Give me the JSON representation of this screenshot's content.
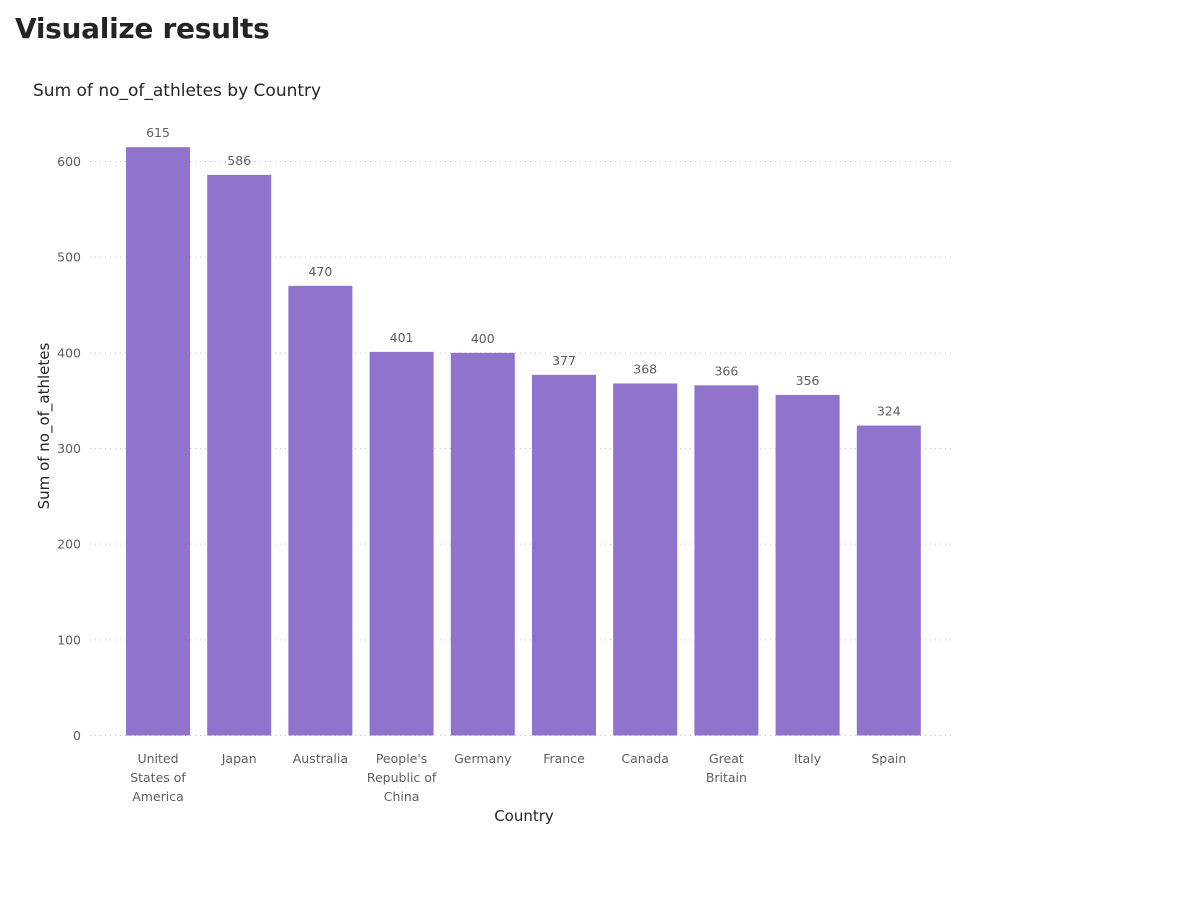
{
  "page": {
    "title": "Visualize results"
  },
  "chart_data": {
    "type": "bar",
    "title": "Sum of no_of_athletes by Country",
    "xlabel": "Country",
    "ylabel": "Sum of no_of_athletes",
    "categories": [
      "United States of America",
      "Japan",
      "Australia",
      "People's Republic of China",
      "Germany",
      "France",
      "Canada",
      "Great Britain",
      "Italy",
      "Spain"
    ],
    "category_label_lines": [
      [
        "United",
        "States of",
        "America"
      ],
      [
        "Japan"
      ],
      [
        "Australia"
      ],
      [
        "People's",
        "Republic of",
        "China"
      ],
      [
        "Germany"
      ],
      [
        "France"
      ],
      [
        "Canada"
      ],
      [
        "Great",
        "Britain"
      ],
      [
        "Italy"
      ],
      [
        "Spain"
      ]
    ],
    "values": [
      615,
      586,
      470,
      401,
      400,
      377,
      368,
      366,
      356,
      324
    ],
    "ylim": [
      0,
      600
    ],
    "yticks": [
      0,
      100,
      200,
      300,
      400,
      500,
      600
    ],
    "grid": true,
    "legend": "none",
    "data_labels": true,
    "colors": {
      "bar": "#8f73cc"
    }
  }
}
